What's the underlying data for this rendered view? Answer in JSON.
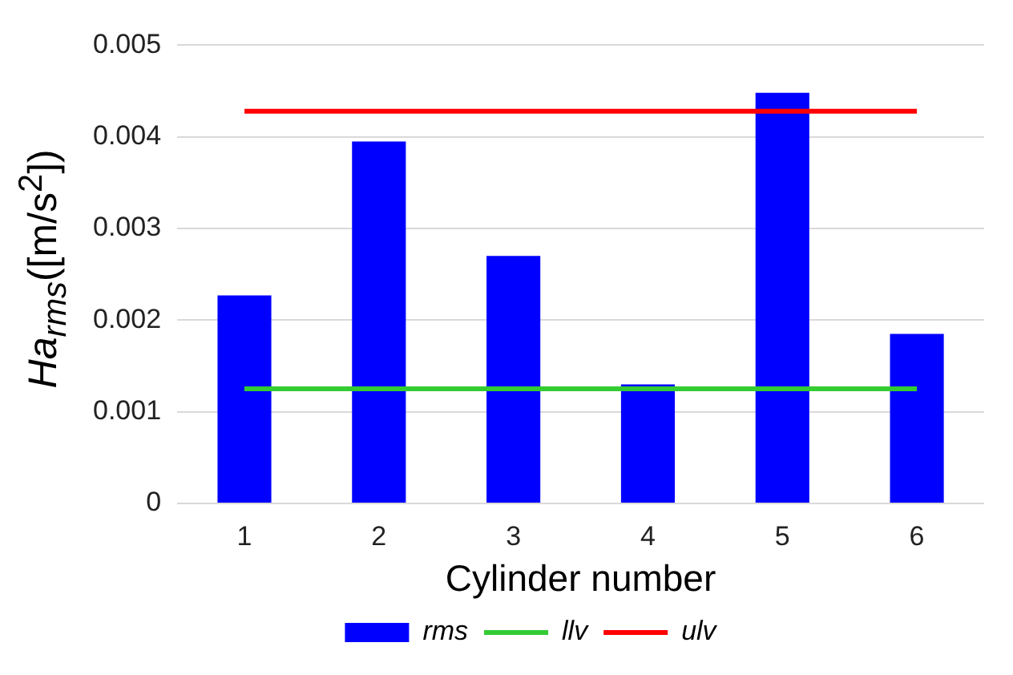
{
  "chart_data": {
    "type": "bar",
    "xlabel": "Cylinder number",
    "ylabel": "Ha$_{rms}$([m/s$^{2}$])",
    "categories": [
      "1",
      "2",
      "3",
      "4",
      "5",
      "6"
    ],
    "series": [
      {
        "name": "rms",
        "color": "#0000ff",
        "values": [
          0.00227,
          0.00395,
          0.0027,
          0.0013,
          0.00448,
          0.00185
        ]
      },
      {
        "name": "llv",
        "type": "line",
        "color": "#33cc33",
        "values": [
          0.00125,
          0.00125,
          0.00125,
          0.00125,
          0.00125,
          0.00125
        ]
      },
      {
        "name": "ulv",
        "type": "line",
        "color": "#ff0000",
        "values": [
          0.00428,
          0.00428,
          0.00428,
          0.00428,
          0.00428,
          0.00428
        ]
      }
    ],
    "ylim": [
      0,
      0.005
    ],
    "yticks": [
      0,
      0.001,
      0.002,
      0.003,
      0.004,
      0.005
    ],
    "grid": "y",
    "legend": "bottom",
    "marker": "none"
  }
}
